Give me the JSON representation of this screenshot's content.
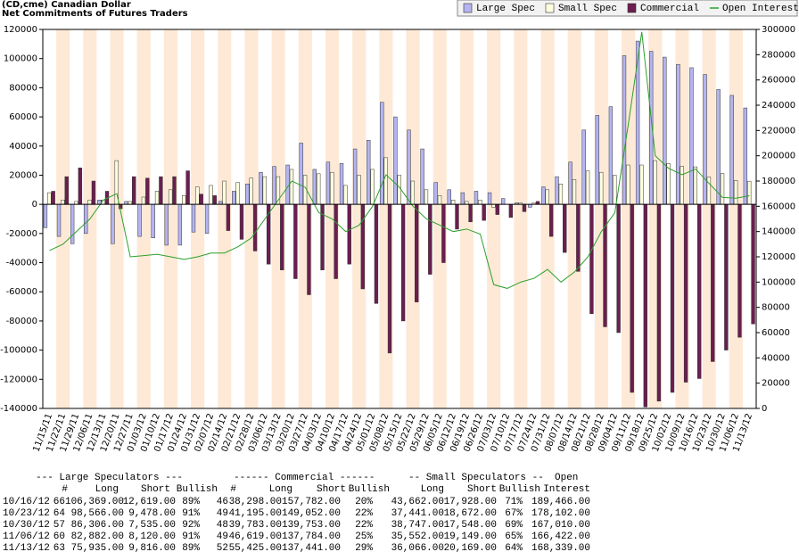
{
  "chart_data": {
    "type": "bar",
    "title": "(CD,cme) Canadian Dollar",
    "subtitle": "Net Commitments of Futures Traders",
    "categories": [
      "11/15/11",
      "11/22/11",
      "11/29/11",
      "12/06/11",
      "12/13/11",
      "12/20/11",
      "12/27/11",
      "01/03/12",
      "01/10/12",
      "01/17/12",
      "01/24/12",
      "01/31/12",
      "02/07/12",
      "02/14/12",
      "02/21/12",
      "02/28/12",
      "03/06/12",
      "03/13/12",
      "03/20/12",
      "03/27/12",
      "04/03/12",
      "04/10/12",
      "04/17/12",
      "04/24/12",
      "05/01/12",
      "05/08/12",
      "05/15/12",
      "05/22/12",
      "05/29/12",
      "06/05/12",
      "06/12/12",
      "06/19/12",
      "06/26/12",
      "07/03/12",
      "07/10/12",
      "07/17/12",
      "07/24/12",
      "07/31/12",
      "08/07/12",
      "08/14/12",
      "08/21/12",
      "08/28/12",
      "09/04/12",
      "09/11/12",
      "09/18/12",
      "09/25/12",
      "10/02/12",
      "10/09/12",
      "10/16/12",
      "10/23/12",
      "10/30/12",
      "11/06/12",
      "11/13/12"
    ],
    "series": [
      {
        "name": "Large Spec",
        "color": "#b4b4f0",
        "values": [
          -16000,
          -22000,
          -27000,
          -20000,
          3000,
          -27000,
          2000,
          -22000,
          -23000,
          -28000,
          -28000,
          -19000,
          -20000,
          2000,
          9000,
          14000,
          22000,
          26000,
          27000,
          42000,
          24000,
          29000,
          28000,
          38000,
          44000,
          70000,
          60000,
          51000,
          38000,
          15000,
          10000,
          8000,
          9000,
          8000,
          4000,
          1000,
          -2000,
          12000,
          19000,
          29000,
          51000,
          61000,
          67000,
          102000,
          112000,
          105000,
          101000,
          96000,
          93750,
          89088,
          78771,
          74762,
          66119
        ]
      },
      {
        "name": "Small Spec",
        "color": "#ffffe0",
        "values": [
          8000,
          3000,
          2000,
          3000,
          3000,
          30000,
          2000,
          5000,
          9000,
          10000,
          6000,
          12000,
          13000,
          16000,
          15000,
          18000,
          19000,
          19000,
          24000,
          20000,
          21000,
          22000,
          13000,
          20000,
          24000,
          32000,
          20000,
          16000,
          10000,
          6000,
          3000,
          2000,
          3000,
          -2000,
          0,
          1000,
          1000,
          10000,
          14000,
          17000,
          23000,
          22000,
          20000,
          27000,
          27000,
          30000,
          28000,
          26000,
          25734,
          18769,
          21199,
          16403,
          15897
        ]
      },
      {
        "name": "Commercial",
        "color": "#6b1e4f",
        "values": [
          9000,
          19000,
          25000,
          16000,
          9000,
          -3000,
          19000,
          18000,
          19000,
          19000,
          23000,
          7000,
          6000,
          -18000,
          -24000,
          -32000,
          -41000,
          -45000,
          -51000,
          -62000,
          -45000,
          -51000,
          -41000,
          -58000,
          -68000,
          -102000,
          -80000,
          -67000,
          -48000,
          -40000,
          -17000,
          -12000,
          -11000,
          -7000,
          -9000,
          -5000,
          2000,
          -22000,
          -33000,
          -46000,
          -75000,
          -84000,
          -88000,
          -129000,
          -139000,
          -135000,
          -129000,
          -122000,
          -119484,
          -107857,
          -99970,
          -91165,
          -82016
        ]
      },
      {
        "name": "Open Interest",
        "color": "#2ca02c",
        "type": "line",
        "axis": "y2",
        "values": [
          125000,
          130000,
          140000,
          150000,
          165000,
          170000,
          120000,
          121000,
          122000,
          120000,
          118000,
          120000,
          123000,
          123000,
          128000,
          135000,
          150000,
          165000,
          180000,
          175000,
          155000,
          150000,
          140000,
          145000,
          160000,
          185000,
          175000,
          160000,
          150000,
          145000,
          140000,
          142000,
          138000,
          98000,
          95000,
          100000,
          103000,
          110000,
          100000,
          108000,
          120000,
          140000,
          155000,
          225000,
          298000,
          200000,
          190000,
          185000,
          189466,
          178102,
          167010,
          166422,
          168339
        ]
      }
    ],
    "ylim": [
      -140000,
      120000
    ],
    "yticks": [
      -140000,
      -120000,
      -100000,
      -80000,
      -60000,
      -40000,
      -20000,
      0,
      20000,
      40000,
      60000,
      80000,
      100000,
      120000
    ],
    "y2lim": [
      0,
      300000
    ],
    "y2ticks": [
      0,
      20000,
      40000,
      60000,
      80000,
      100000,
      120000,
      140000,
      160000,
      180000,
      200000,
      220000,
      240000,
      260000,
      280000,
      300000
    ],
    "legend": "top-right"
  },
  "table": {
    "header1": [
      "--- Large Speculators ---",
      "------ Commercial ------",
      "-- Small Speculators --",
      "Open"
    ],
    "header2": [
      "#",
      "Long",
      "Short",
      "Bullish",
      "#",
      "Long",
      "Short",
      "Bullish",
      "Long",
      "Short",
      "Bullish",
      "Interest"
    ],
    "rows": [
      [
        "10/16/12",
        "66",
        "106,369.00",
        "12,619.00",
        "89%",
        "46",
        "38,298.00",
        "157,782.00",
        "20%",
        "43,662.00",
        "17,928.00",
        "71%",
        "189,466.00"
      ],
      [
        "10/23/12",
        "64",
        "98,566.00",
        "9,478.00",
        "91%",
        "49",
        "41,195.00",
        "149,052.00",
        "22%",
        "37,441.00",
        "18,672.00",
        "67%",
        "178,102.00"
      ],
      [
        "10/30/12",
        "57",
        "86,306.00",
        "7,535.00",
        "92%",
        "48",
        "39,783.00",
        "139,753.00",
        "22%",
        "38,747.00",
        "17,548.00",
        "69%",
        "167,010.00"
      ],
      [
        "11/06/12",
        "60",
        "82,882.00",
        "8,120.00",
        "91%",
        "49",
        "46,619.00",
        "137,784.00",
        "25%",
        "35,552.00",
        "19,149.00",
        "65%",
        "166,422.00"
      ],
      [
        "11/13/12",
        "63",
        "75,935.00",
        "9,816.00",
        "89%",
        "52",
        "55,425.00",
        "137,441.00",
        "29%",
        "36,066.00",
        "20,169.00",
        "64%",
        "168,339.00"
      ]
    ]
  }
}
